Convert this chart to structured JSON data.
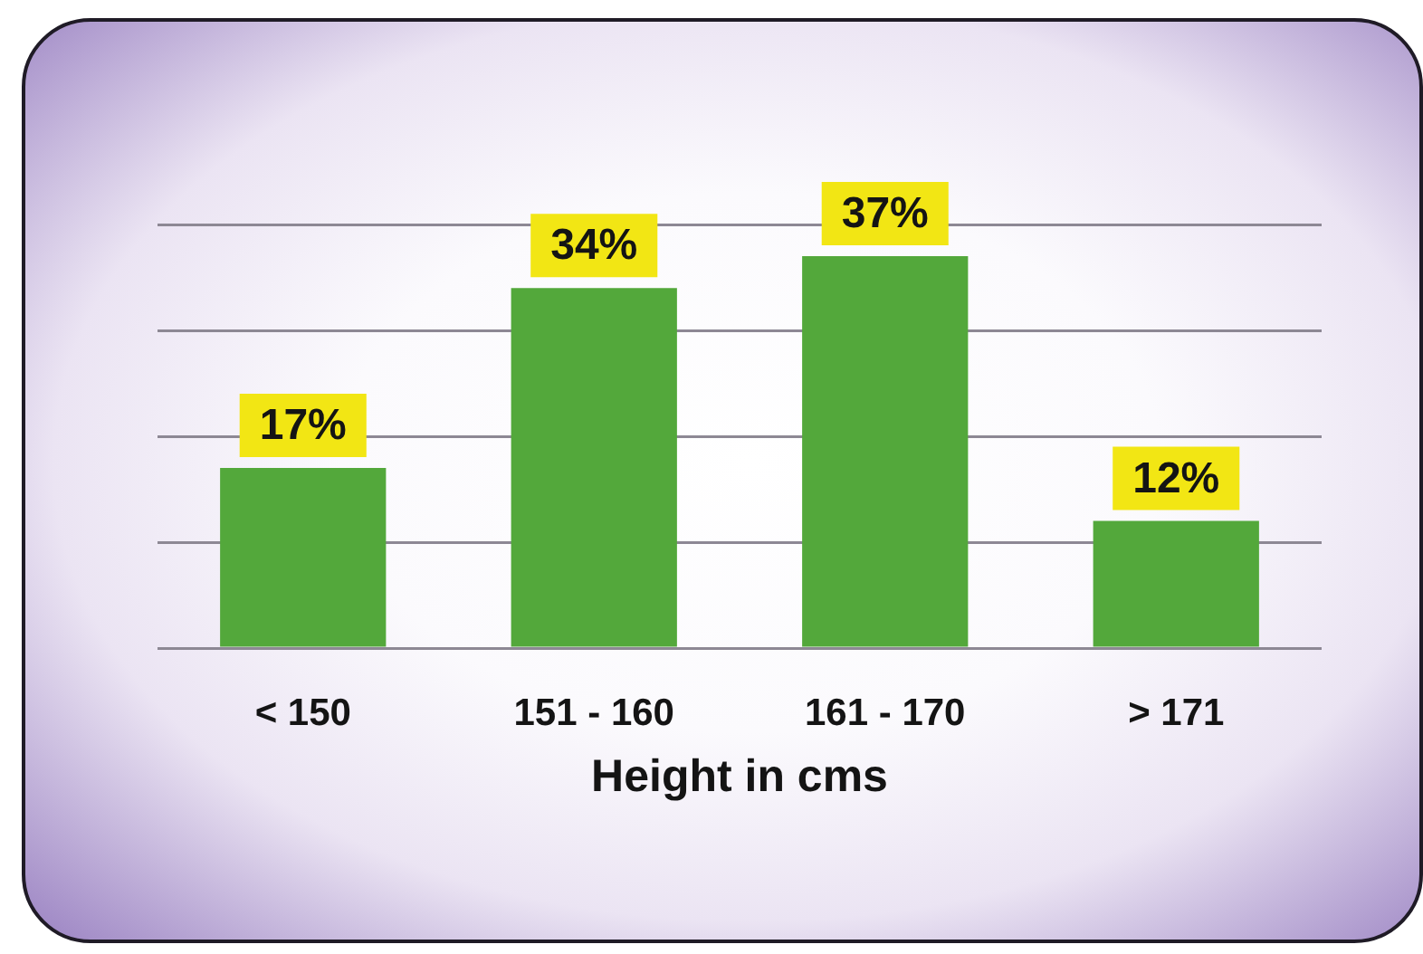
{
  "chart_data": {
    "type": "bar",
    "xlabel": "Height in cms",
    "categories": [
      "< 150",
      "151 - 160",
      "161 - 170",
      "> 171"
    ],
    "values": [
      17,
      34,
      37,
      12
    ],
    "color": "#53a83b",
    "value_labels": [
      "17%",
      "34%",
      "37%",
      "12%"
    ],
    "ylim": [
      0,
      40
    ],
    "yticks": [
      {
        "value": 0,
        "label": null
      },
      {
        "value": 10,
        "label": null
      },
      {
        "value": 20,
        "label": null
      },
      {
        "value": 30,
        "label": null
      },
      {
        "value": 40,
        "label": null
      }
    ],
    "grid": "y",
    "tick_labels": "x"
  }
}
